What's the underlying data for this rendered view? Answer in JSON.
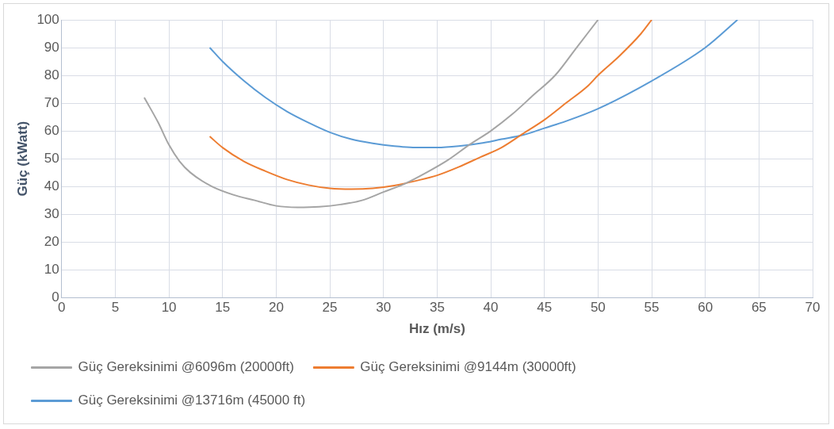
{
  "chart_data": {
    "type": "line",
    "xlabel": "Hız (m/s)",
    "ylabel": "Güç (kWatt)",
    "xlim": [
      0,
      70
    ],
    "xticks": [
      0,
      5,
      10,
      15,
      20,
      25,
      30,
      35,
      40,
      45,
      50,
      55,
      60,
      65,
      70
    ],
    "ylim": [
      0,
      100
    ],
    "yticks": [
      0,
      10,
      20,
      30,
      40,
      50,
      60,
      70,
      80,
      90,
      100
    ],
    "grid": true,
    "legend": "bottom",
    "marker": "none",
    "line_style": "solid",
    "series": [
      {
        "name": "Güç Gereksinimi @6096m (20000ft)",
        "color": "#a5a5a5",
        "x": [
          7.7,
          9,
          10,
          11,
          12,
          14,
          16,
          18,
          20,
          22,
          24,
          26,
          28,
          30,
          32,
          34,
          36,
          38,
          40,
          42,
          44,
          46,
          48,
          50
        ],
        "values": [
          72,
          63,
          55,
          49,
          45,
          40,
          37,
          35,
          33,
          32.5,
          32.7,
          33.5,
          35,
          38,
          41,
          45,
          49.5,
          55,
          60,
          66,
          73,
          80,
          90,
          100
        ]
      },
      {
        "name": "Güç Gereksinimi @9144m (30000ft)",
        "color": "#ed7d31",
        "x": [
          13.8,
          15,
          17,
          19,
          21,
          23,
          25,
          27,
          29,
          31,
          33,
          35,
          37,
          39,
          41,
          43,
          45,
          47,
          49,
          50,
          52,
          54,
          55
        ],
        "values": [
          58,
          54,
          49,
          45.5,
          42.5,
          40.5,
          39.3,
          39,
          39.3,
          40.3,
          42,
          44,
          47,
          50.5,
          54,
          59,
          64,
          70,
          76,
          80,
          87,
          95,
          100
        ]
      },
      {
        "name": "Güç Gereksinimi @13716m (45000 ft)",
        "color": "#5b9bd5",
        "x": [
          13.8,
          15,
          17,
          19,
          21,
          23,
          25,
          27,
          29,
          31,
          33,
          35,
          37,
          39,
          41,
          43,
          45,
          47,
          50,
          55,
          60,
          63
        ],
        "values": [
          90,
          85,
          78,
          72,
          67,
          63,
          59.5,
          57,
          55.5,
          54.5,
          54,
          54,
          54.5,
          55.5,
          57,
          58.5,
          61,
          63.5,
          68,
          78,
          90,
          100
        ]
      }
    ]
  }
}
